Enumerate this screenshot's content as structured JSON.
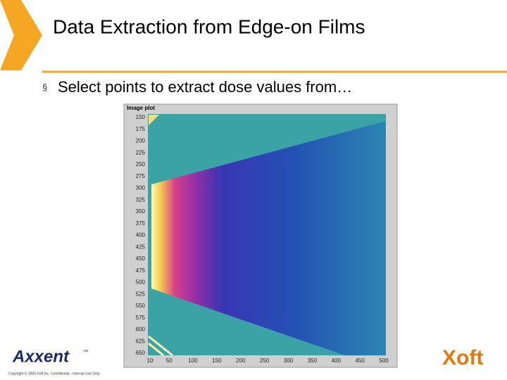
{
  "slide": {
    "title": "Data Extraction from Edge-on Films",
    "bullet": "Select points to extract dose values from…",
    "plot": {
      "title": "Image plot",
      "yticks": [
        150,
        175,
        200,
        225,
        250,
        275,
        300,
        325,
        350,
        375,
        400,
        425,
        450,
        475,
        500,
        525,
        550,
        575,
        600,
        625,
        650
      ],
      "xticks": [
        10,
        50,
        100,
        150,
        200,
        250,
        300,
        350,
        400,
        450,
        500
      ]
    },
    "footer": {
      "logo_left": "Axxent",
      "trademark": "™",
      "copyright": "Copyright © 2005 Xoft Inc. Confidential - Internal Use Only",
      "logo_right": "Xoft"
    }
  }
}
